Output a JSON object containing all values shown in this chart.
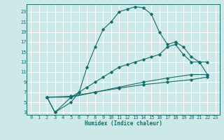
{
  "xlabel": "Humidex (Indice chaleur)",
  "bg_color": "#cce8e8",
  "grid_color": "#ffffff",
  "line_color": "#1a6b6b",
  "xlim": [
    -0.5,
    23.5
  ],
  "ylim": [
    2.5,
    24.5
  ],
  "xticks": [
    0,
    1,
    2,
    3,
    4,
    5,
    6,
    7,
    8,
    9,
    10,
    11,
    12,
    13,
    14,
    15,
    16,
    17,
    18,
    19,
    20,
    21,
    22,
    23
  ],
  "yticks": [
    3,
    5,
    7,
    9,
    11,
    13,
    15,
    17,
    19,
    21,
    23
  ],
  "curve1_x": [
    2,
    3,
    5,
    6,
    7,
    8,
    9,
    10,
    11,
    12,
    13,
    14,
    15,
    16,
    17,
    18,
    19,
    20,
    21,
    22
  ],
  "curve1_y": [
    6,
    3,
    5,
    7,
    12,
    16,
    19.5,
    21,
    23,
    23.5,
    24,
    23.8,
    22.5,
    19,
    16.5,
    17,
    16,
    14,
    13,
    13
  ],
  "curve2_x": [
    2,
    3,
    5,
    6,
    7,
    8,
    9,
    10,
    11,
    12,
    13,
    14,
    15,
    16,
    17,
    18,
    19,
    20,
    21,
    22
  ],
  "curve2_y": [
    6,
    3,
    6,
    7,
    8,
    9,
    10,
    11,
    12,
    12.5,
    13,
    13.5,
    14,
    14.5,
    16,
    16.5,
    14.5,
    13,
    13,
    10.5
  ],
  "curve3_x": [
    2,
    5,
    8,
    11,
    14,
    17,
    20,
    22
  ],
  "curve3_y": [
    6,
    6,
    7,
    8,
    9,
    9.8,
    10.5,
    10.5
  ],
  "curve4_x": [
    2,
    5,
    8,
    11,
    14,
    17,
    20,
    22
  ],
  "curve4_y": [
    6,
    6.2,
    7,
    7.8,
    8.5,
    9,
    9.5,
    10
  ]
}
